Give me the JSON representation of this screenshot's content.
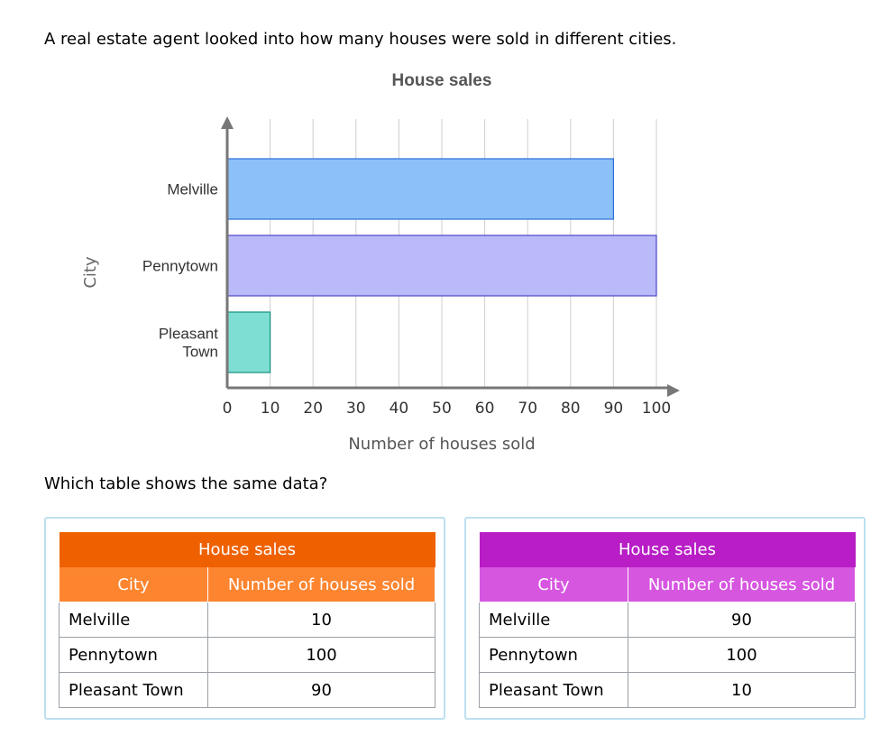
{
  "intro_text": "A real estate agent looked into how many houses were sold in different cities.",
  "question_text": "Which table shows the same data?",
  "chart_data": {
    "type": "bar",
    "orientation": "horizontal",
    "title": "House sales",
    "xlabel": "Number of houses sold",
    "ylabel": "City",
    "categories": [
      "Melville",
      "Pennytown",
      "Pleasant Town"
    ],
    "category_label_lines": [
      [
        "Melville"
      ],
      [
        "Pennytown"
      ],
      [
        "Pleasant",
        "Town"
      ]
    ],
    "values": [
      90,
      100,
      10
    ],
    "bar_colors": [
      "#8cc0f8",
      "#babaf8",
      "#7fded3"
    ],
    "bar_stroke_colors": [
      "#2d6fd8",
      "#4a46c8",
      "#11907e"
    ],
    "xlim": [
      0,
      100
    ],
    "xticks": [
      0,
      10,
      20,
      30,
      40,
      50,
      60,
      70,
      80,
      90,
      100
    ],
    "grid": "vertical"
  },
  "choices": [
    {
      "title": "House sales",
      "col_city": "City",
      "col_num": "Number of houses sold",
      "rows": [
        {
          "city": "Melville",
          "num": "10"
        },
        {
          "city": "Pennytown",
          "num": "100"
        },
        {
          "city": "Pleasant Town",
          "num": "90"
        }
      ],
      "header_color": "#ef6100",
      "subheader_color": "#fd8530"
    },
    {
      "title": "House sales",
      "col_city": "City",
      "col_num": "Number of houses sold",
      "rows": [
        {
          "city": "Melville",
          "num": "90"
        },
        {
          "city": "Pennytown",
          "num": "100"
        },
        {
          "city": "Pleasant Town",
          "num": "10"
        }
      ],
      "header_color": "#b81dc6",
      "subheader_color": "#d656e0"
    }
  ]
}
